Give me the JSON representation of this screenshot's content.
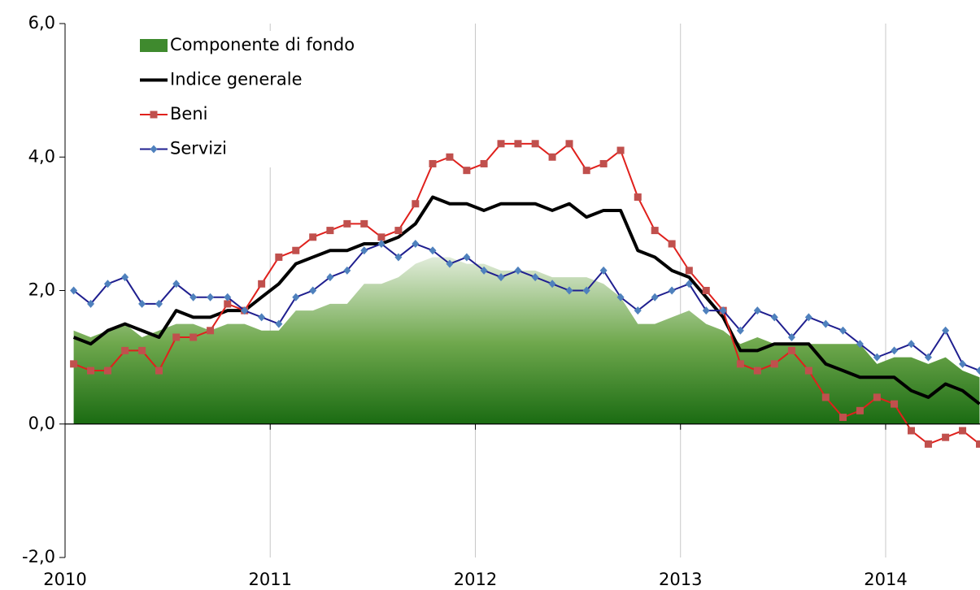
{
  "chart_data": {
    "type": "line",
    "x": [
      2010.042,
      2010.125,
      2010.208,
      2010.292,
      2010.375,
      2010.458,
      2010.542,
      2010.625,
      2010.708,
      2010.792,
      2010.875,
      2010.958,
      2011.042,
      2011.125,
      2011.208,
      2011.292,
      2011.375,
      2011.458,
      2011.542,
      2011.625,
      2011.708,
      2011.792,
      2011.875,
      2011.958,
      2012.042,
      2012.125,
      2012.208,
      2012.292,
      2012.375,
      2012.458,
      2012.542,
      2012.625,
      2012.708,
      2012.792,
      2012.875,
      2012.958,
      2013.042,
      2013.125,
      2013.208,
      2013.292,
      2013.375,
      2013.458,
      2013.542,
      2013.625,
      2013.708,
      2013.792,
      2013.875,
      2013.958,
      2014.042,
      2014.125,
      2014.208,
      2014.292,
      2014.375,
      2014.458
    ],
    "xlim": [
      2010,
      2014.46
    ],
    "xticks": [
      2010,
      2011,
      2012,
      2013,
      2014
    ],
    "ylim": [
      -2,
      6
    ],
    "yticks": [
      {
        "value": -2,
        "label": "-2,0"
      },
      {
        "value": 0,
        "label": "0,0"
      },
      {
        "value": 2,
        "label": "2,0"
      },
      {
        "value": 4,
        "label": "4,0"
      },
      {
        "value": 6,
        "label": "6,0"
      }
    ],
    "grid": "x",
    "legend": "upper left",
    "series": [
      {
        "name": "Componente di fondo",
        "kind": "area",
        "color": "#1e6b1e",
        "values": [
          1.4,
          1.3,
          1.4,
          1.5,
          1.3,
          1.4,
          1.5,
          1.5,
          1.4,
          1.5,
          1.5,
          1.4,
          1.4,
          1.7,
          1.7,
          1.8,
          1.8,
          2.1,
          2.1,
          2.2,
          2.4,
          2.5,
          2.5,
          2.4,
          2.4,
          2.3,
          2.3,
          2.3,
          2.2,
          2.2,
          2.2,
          2.1,
          1.9,
          1.5,
          1.5,
          1.6,
          1.7,
          1.5,
          1.4,
          1.2,
          1.3,
          1.2,
          1.2,
          1.2,
          1.2,
          1.2,
          1.2,
          0.9,
          1.0,
          1.0,
          0.9,
          1.0,
          0.8,
          0.7
        ]
      },
      {
        "name": "Indice generale",
        "kind": "line",
        "color": "#000000",
        "values": [
          1.3,
          1.2,
          1.4,
          1.5,
          1.4,
          1.3,
          1.7,
          1.6,
          1.6,
          1.7,
          1.7,
          1.9,
          2.1,
          2.4,
          2.5,
          2.6,
          2.6,
          2.7,
          2.7,
          2.8,
          3.0,
          3.4,
          3.3,
          3.3,
          3.2,
          3.3,
          3.3,
          3.3,
          3.2,
          3.3,
          3.1,
          3.2,
          3.2,
          2.6,
          2.5,
          2.3,
          2.2,
          1.9,
          1.6,
          1.1,
          1.1,
          1.2,
          1.2,
          1.2,
          0.9,
          0.8,
          0.7,
          0.7,
          0.7,
          0.5,
          0.4,
          0.6,
          0.5,
          0.3
        ]
      },
      {
        "name": "Beni",
        "kind": "line",
        "marker": "square",
        "color": "#e0201c",
        "marker_color": "#c0504d",
        "values": [
          0.9,
          0.8,
          0.8,
          1.1,
          1.1,
          0.8,
          1.3,
          1.3,
          1.4,
          1.8,
          1.7,
          2.1,
          2.5,
          2.6,
          2.8,
          2.9,
          3.0,
          3.0,
          2.8,
          2.9,
          3.3,
          3.9,
          4.0,
          3.8,
          3.9,
          4.2,
          4.2,
          4.2,
          4.0,
          4.2,
          3.8,
          3.9,
          4.1,
          3.4,
          2.9,
          2.7,
          2.3,
          2.0,
          1.7,
          0.9,
          0.8,
          0.9,
          1.1,
          0.8,
          0.4,
          0.1,
          0.2,
          0.4,
          0.3,
          -0.1,
          -0.3,
          -0.2,
          -0.1,
          -0.3
        ]
      },
      {
        "name": "Servizi",
        "kind": "line",
        "marker": "diamond",
        "color": "#1f1f8f",
        "marker_color": "#4f81bd",
        "values": [
          2.0,
          1.8,
          2.1,
          2.2,
          1.8,
          1.8,
          2.1,
          1.9,
          1.9,
          1.9,
          1.7,
          1.6,
          1.5,
          1.9,
          2.0,
          2.2,
          2.3,
          2.6,
          2.7,
          2.5,
          2.7,
          2.6,
          2.4,
          2.5,
          2.3,
          2.2,
          2.3,
          2.2,
          2.1,
          2.0,
          2.0,
          2.3,
          1.9,
          1.7,
          1.9,
          2.0,
          2.1,
          1.7,
          1.7,
          1.4,
          1.7,
          1.6,
          1.3,
          1.6,
          1.5,
          1.4,
          1.2,
          1.0,
          1.1,
          1.2,
          1.0,
          1.4,
          0.9,
          0.8
        ]
      }
    ]
  }
}
